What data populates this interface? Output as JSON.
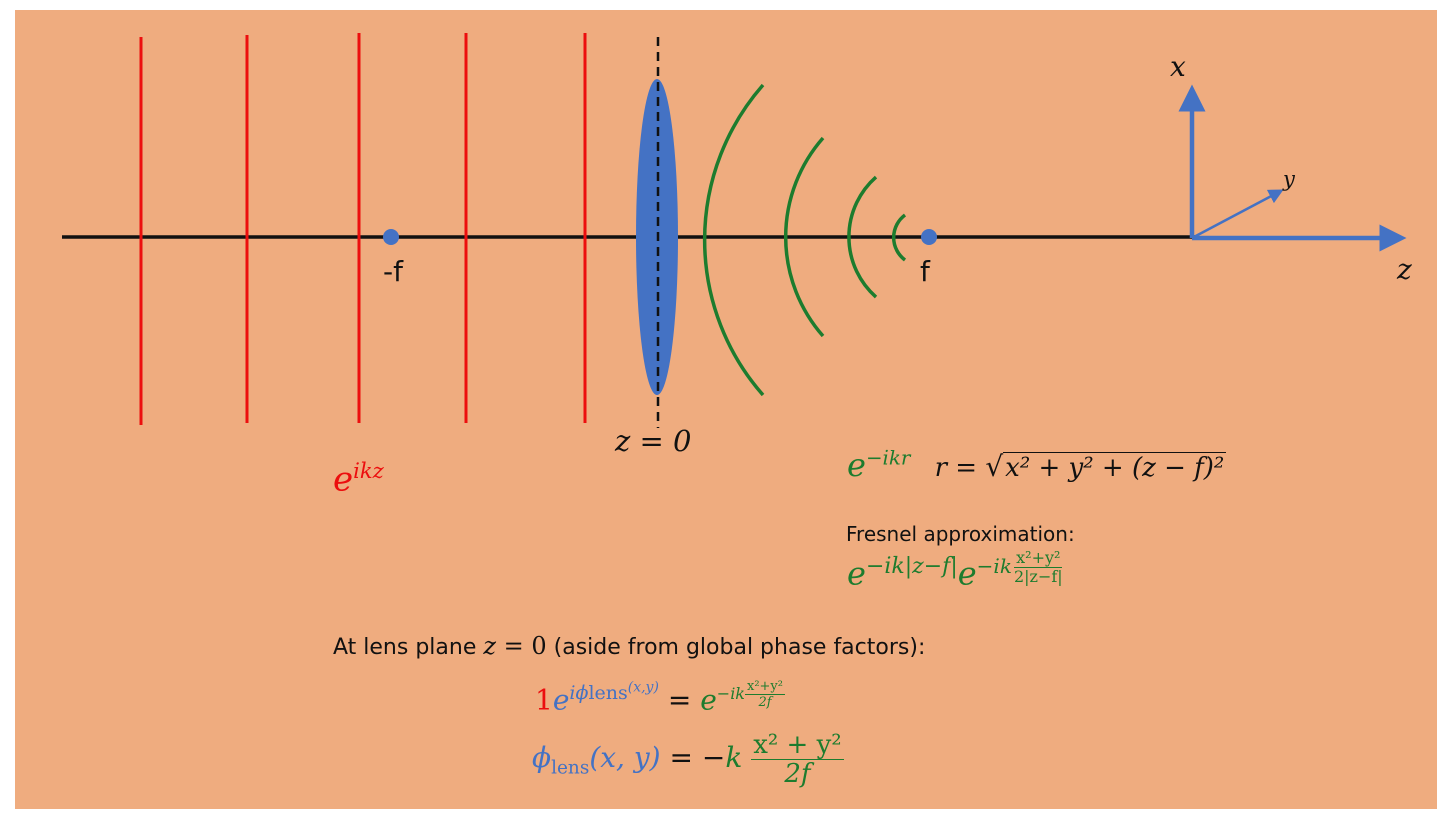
{
  "colors": {
    "background": "#efac7f",
    "plane_wave": "#ec0e0e",
    "spherical_wave": "#1d7c2e",
    "lens": "#4472c4",
    "axes": "#4472c4",
    "text": "#111111"
  },
  "labels": {
    "neg_focal": "-f",
    "pos_focal": "f",
    "lens_plane": "z = 0",
    "axis_x": "x",
    "axis_y": "y",
    "axis_z": "z"
  },
  "plane_wave": {
    "base": "e",
    "exponent": "ikz"
  },
  "spherical_wave": {
    "base": "e",
    "exponent": "−ikr",
    "r_lhs": "r = ",
    "r_radical": "√",
    "r_rhs": "x² + y² + (z − f)²"
  },
  "fresnel": {
    "title": "Fresnel approximation:",
    "base1": "e",
    "exp1": "−ik|z−f|",
    "base2": "e",
    "exp2_prefix": "−ik",
    "exp2_num": "x²+y²",
    "exp2_den": "2|z−f|"
  },
  "lens_plane_text": {
    "prefix": "At lens plane ",
    "var": "z",
    "eq": " = 0",
    "suffix": " (aside from global phase factors):"
  },
  "eq1": {
    "one": "1",
    "base": "e",
    "sup_i": "i",
    "sup_phi": "ϕ",
    "sup_sub": "lens",
    "sup_args": "(x,y)",
    "equals": " = ",
    "rhs_base": "e",
    "rhs_prefix": "−ik",
    "rhs_num": "x²+y²",
    "rhs_den": "2f"
  },
  "eq2": {
    "phi": "ϕ",
    "sub": "lens",
    "args": "(x, y)",
    "equals": " = −",
    "k": "k",
    "num": "x² + y²",
    "den": "2f"
  }
}
